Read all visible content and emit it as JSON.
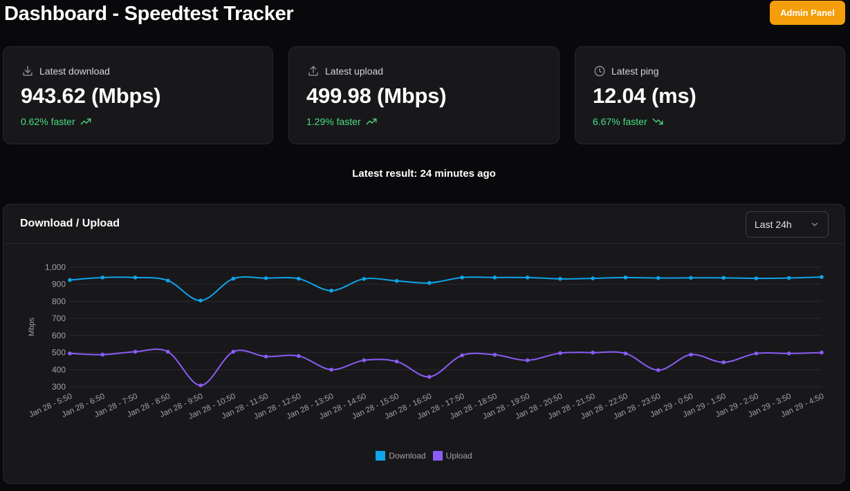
{
  "header": {
    "title": "Dashboard - Speedtest Tracker",
    "admin_label": "Admin Panel"
  },
  "stats": [
    {
      "label": "Latest download",
      "value": "943.62 (Mbps)",
      "change": "0.62% faster",
      "icon": "download-icon",
      "trend_icon": "trending-up-icon"
    },
    {
      "label": "Latest upload",
      "value": "499.98 (Mbps)",
      "change": "1.29% faster",
      "icon": "upload-icon",
      "trend_icon": "trending-up-icon"
    },
    {
      "label": "Latest ping",
      "value": "12.04 (ms)",
      "change": "6.67% faster",
      "icon": "clock-icon",
      "trend_icon": "trending-down-icon"
    }
  ],
  "latest_result": "Latest result: 24 minutes ago",
  "chart_panel": {
    "title": "Download / Upload",
    "range_selected": "Last 24h"
  },
  "colors": {
    "accent": "#f59e0b",
    "positive": "#4ade80",
    "download": "#0ea5e9",
    "upload": "#8b5cf6"
  },
  "chart_data": {
    "type": "line",
    "ylabel": "Mbps",
    "xlabel": "",
    "ylim": [
      300,
      1000
    ],
    "yticks": [
      300,
      400,
      500,
      600,
      700,
      800,
      900,
      1000
    ],
    "ytick_labels": [
      "300",
      "400",
      "500",
      "600",
      "700",
      "800",
      "900",
      "1,000"
    ],
    "grid": true,
    "legend_position": "bottom",
    "x": [
      "Jan 28 - 5:50",
      "Jan 28 - 6:50",
      "Jan 28 - 7:50",
      "Jan 28 - 8:50",
      "Jan 28 - 9:50",
      "Jan 28 - 10:50",
      "Jan 28 - 11:50",
      "Jan 28 - 12:50",
      "Jan 28 - 13:50",
      "Jan 28 - 14:50",
      "Jan 28 - 15:50",
      "Jan 28 - 16:50",
      "Jan 28 - 17:50",
      "Jan 28 - 18:50",
      "Jan 28 - 19:50",
      "Jan 28 - 20:50",
      "Jan 28 - 21:50",
      "Jan 28 - 22:50",
      "Jan 28 - 23:50",
      "Jan 29 - 0:50",
      "Jan 29 - 1:50",
      "Jan 29 - 2:50",
      "Jan 29 - 3:50",
      "Jan 29 - 4:50"
    ],
    "series": [
      {
        "name": "Download",
        "color": "#0ea5e9",
        "values": [
          925,
          940,
          940,
          922,
          805,
          933,
          936,
          933,
          863,
          932,
          920,
          908,
          940,
          940,
          940,
          932,
          935,
          940,
          937,
          938,
          938,
          935,
          937,
          943
        ]
      },
      {
        "name": "Upload",
        "color": "#8b5cf6",
        "values": [
          495,
          488,
          505,
          505,
          308,
          505,
          477,
          480,
          400,
          455,
          448,
          358,
          484,
          487,
          455,
          497,
          500,
          495,
          397,
          488,
          443,
          495,
          495,
          500
        ]
      }
    ]
  }
}
